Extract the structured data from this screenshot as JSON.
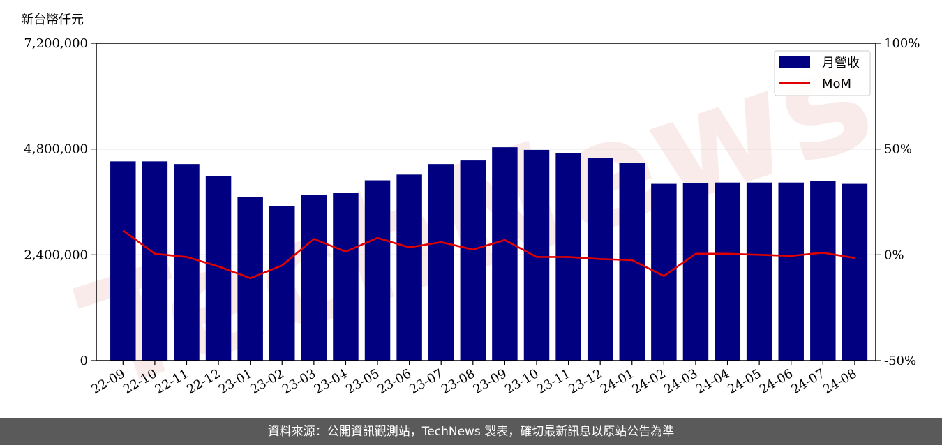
{
  "unit_label": "新台幣仟元",
  "footer_text": "資料來源：公開資訊觀測站，TechNews 製表，確切最新訊息以原站公告為準",
  "watermark_text": "TechNews",
  "colors": {
    "bar": "#000080",
    "line": "#e00000",
    "grid": "#d0d0d0"
  },
  "chart_data": {
    "type": "bar",
    "categories": [
      "22-09",
      "22-10",
      "22-11",
      "22-12",
      "23-01",
      "23-02",
      "23-03",
      "23-04",
      "23-05",
      "23-06",
      "23-07",
      "23-08",
      "23-09",
      "23-10",
      "23-11",
      "23-12",
      "24-01",
      "24-02",
      "24-03",
      "24-04",
      "24-05",
      "24-06",
      "24-07",
      "24-08"
    ],
    "series": [
      {
        "name": "月營收",
        "type": "bar",
        "axis": "left",
        "values": [
          4520000,
          4520000,
          4460000,
          4190000,
          3710000,
          3510000,
          3760000,
          3810000,
          4090000,
          4220000,
          4460000,
          4540000,
          4840000,
          4780000,
          4710000,
          4600000,
          4480000,
          4010000,
          4030000,
          4040000,
          4040000,
          4040000,
          4070000,
          4010000
        ]
      },
      {
        "name": "MoM",
        "type": "line",
        "axis": "right",
        "values": [
          11.5,
          0.5,
          -1.0,
          -5.5,
          -11.0,
          -5.0,
          7.5,
          1.5,
          8.0,
          3.5,
          6.0,
          2.5,
          7.0,
          -1.0,
          -1.0,
          -2.0,
          -2.5,
          -10.0,
          0.5,
          0.5,
          0.0,
          -0.5,
          1.0,
          -1.5
        ]
      }
    ],
    "y_left": {
      "ticks": [
        "0",
        "2,400,000",
        "4,800,000",
        "7,200,000"
      ],
      "range": [
        0,
        7200000
      ]
    },
    "y_right": {
      "ticks": [
        "-50%",
        "0%",
        "50%",
        "100%"
      ],
      "range": [
        -50,
        100
      ]
    },
    "grid": true,
    "legend_position": "top-right"
  }
}
